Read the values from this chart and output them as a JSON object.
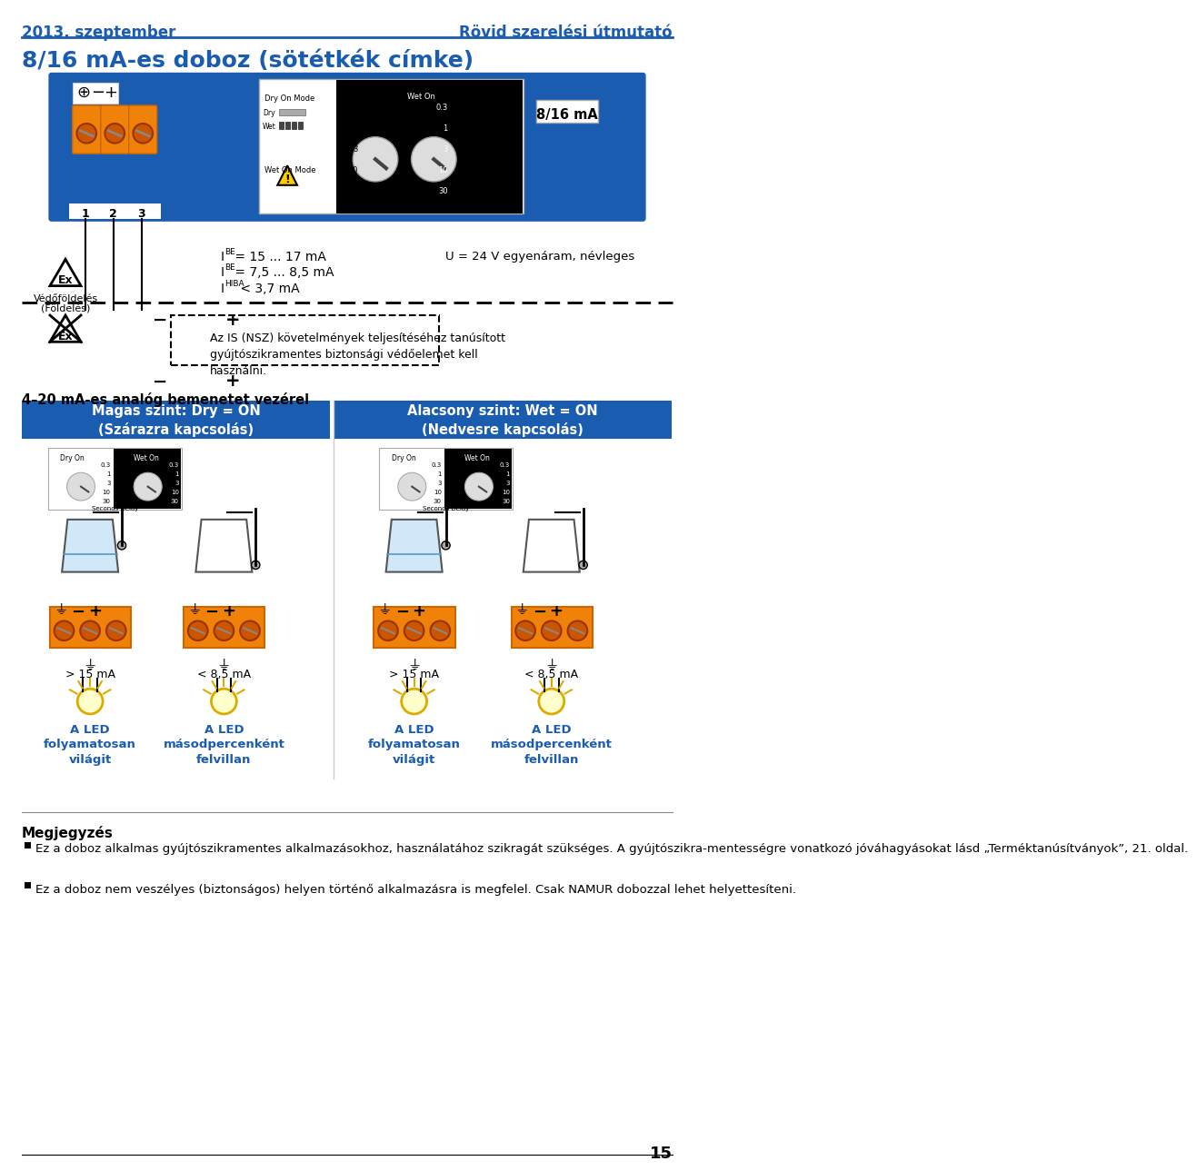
{
  "title_left": "2013. szeptember",
  "title_right": "Rövid szerelési útmutató",
  "main_title": "8/16 mA-es doboz (sötétkék címke)",
  "subtitle": "4–20 mA-es analóg bemenetet vezérel",
  "blue_color": "#1a5cb0",
  "orange_color": "#f0820a",
  "section1_title": "Magas szint: Dry = ON\n(Szárazra kapcsolás)",
  "section2_title": "Alacsony szint: Wet = ON\n(Nedvesre kapcsolás)",
  "note_title": "Megjegyzés",
  "note1": "Ez a doboz alkalmas gyújtószikramentes alkalmazásokhoz, használatához szikragát szükséges. A gyújtószikra-mentességre vonatkozó jóváhagyásokat lásd „Terméktanúsítványok”, 21. oldal.",
  "note2": "Ez a doboz nem veszélyes (biztonságos) helyen történő alkalmazásra is megfelel. Csak NAMUR dobozzal lehet helyettesíteni.",
  "page_number": "15",
  "ibe_line1": "I_BE = 15 ... 17 mA",
  "ibe_line2": "I_BE = 7,5 ... 8,5 mA",
  "ihiba_line": "I_HIBA < 3,7 mA",
  "voltage": "U = 24 V egyenáram, névleges",
  "ex_label": "Védőföldelés\n(Földelés)",
  "is_text": "Az IS (NSZ) követelmények teljesítéséhez tanúsított\ngyújtószikramentes biztonsági védőelemet kell\nhasználni.",
  "label_15ma_1": "> 15 mA",
  "label_85ma_1": "< 8,5 mA",
  "label_15ma_2": "> 15 mA",
  "label_85ma_2": "< 8,5 mA",
  "led_text1": "A LED\nfolyamatosan\nvilágit",
  "led_text2": "A LED\nmásodpercenként\nfelvillan",
  "led_text3": "A LED\nfolyamatosan\nvilágit",
  "led_text4": "A LED\nmásodpercenként\nfelvillan"
}
